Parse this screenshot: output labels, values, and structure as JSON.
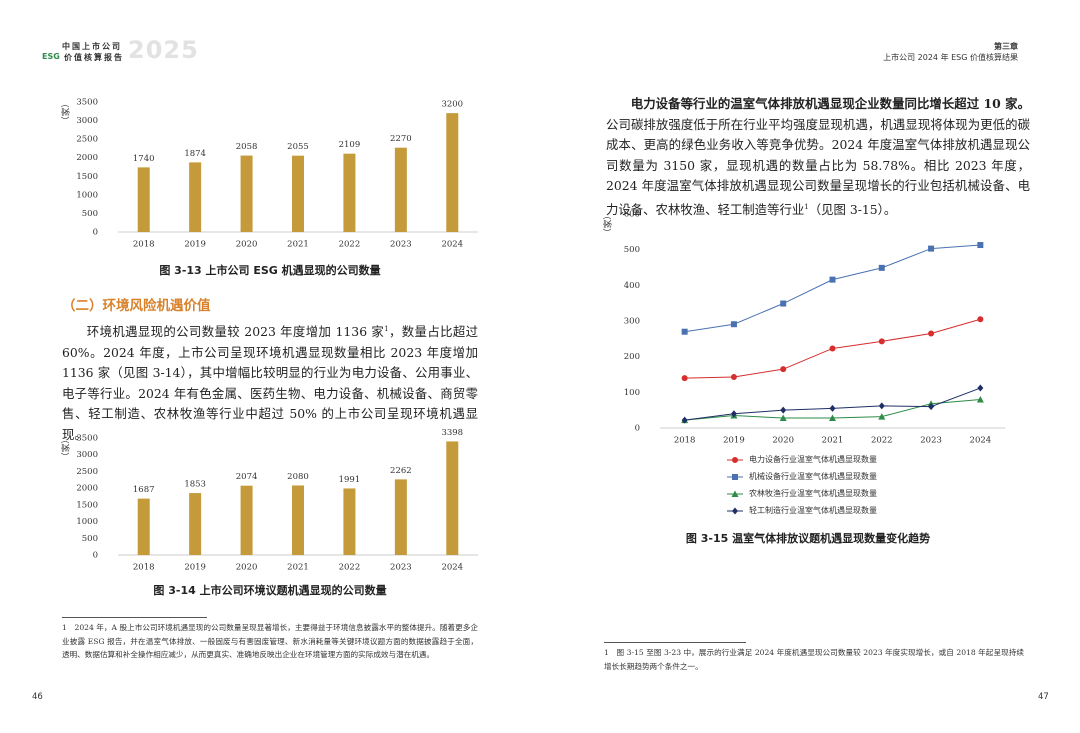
{
  "header": {
    "left_title": "中国上市公司",
    "left_esg": "ESG",
    "left_subtitle": "价值核算报告",
    "left_year": "2025",
    "right_chapter": "第三章",
    "right_subtitle": "上市公司 2024 年 ESG 价值核算结果"
  },
  "left": {
    "section_heading": "（二）环境风险机遇价值",
    "paragraph": {
      "before": "环境机遇显现的公司数量较 2023 年度增加 1136 家",
      "sup": "1",
      "after": "，数量占比超过 60%。2024 年度，上市公司呈现环境机遇显现数量相比 2023 年度增加 1136 家（见图 3-14），其中增幅比较明显的行业为电力设备、公用事业、电子等行业。2024 年有色金属、医药生物、电力设备、机械设备、商贸零售、轻工制造、农林牧渔等行业中超过 50% 的上市公司呈现环境机遇显现。"
    },
    "footnote": "1　2024 年，A 股上市公司环境机遇显现的公司数量呈现显著增长，主要得益于环境信息披露水平的整体提升。随着更多企业披露 ESG 报告，并在温室气体排放、一般固废与有害固废管理、新水消耗量等关键环境议题方面的数据披露趋于全面，透明、数据估算和补全操作相应减少，从而更真实、准确地反映出企业在环境管理方面的实际成效与潜在机遇。",
    "page_number": "46"
  },
  "right": {
    "paragraph": {
      "bold": "电力设备等行业的温室气体排放机遇显现企业数量同比增长超过 10 家。",
      "before": "公司碳排放强度低于所在行业平均强度显现机遇，机遇显现将体现为更低的碳成本、更高的绿色业务收入等竞争优势。2024 年度温室气体排放机遇显现公司数量为 3150 家，显现机遇的数量占比为 58.78%。相比 2023 年度，2024 年度温室气体排放机遇显现公司数量呈现增长的行业包括机械设备、电力设备、农林牧渔、轻工制造等行业",
      "sup": "1",
      "after": "（见图 3-15）。"
    },
    "footnote": "1　图 3-15 至图 3-23 中，展示的行业满足 2024 年度机遇显现公司数量较 2023 年度实现增长，或自 2018 年起呈现持续增长长期趋势两个条件之一。",
    "page_number": "47"
  },
  "chart_data": [
    {
      "type": "bar",
      "title": "图 3-13 上市公司 ESG 机遇显现的公司数量",
      "y_label": "（家）",
      "categories": [
        "2018",
        "2019",
        "2020",
        "2021",
        "2022",
        "2023",
        "2024"
      ],
      "values": [
        1740,
        1874,
        2058,
        2055,
        2109,
        2270,
        3200
      ],
      "color": "#c59a3b",
      "ylim": [
        0,
        3500
      ],
      "yticks": [
        0,
        500,
        1000,
        1500,
        2000,
        2500,
        3000,
        3500
      ],
      "grid": false
    },
    {
      "type": "bar",
      "title": "图 3-14 上市公司环境议题机遇显现的公司数量",
      "y_label": "（家）",
      "categories": [
        "2018",
        "2019",
        "2020",
        "2021",
        "2022",
        "2023",
        "2024"
      ],
      "values": [
        1687,
        1853,
        2074,
        2080,
        1991,
        2262,
        3398
      ],
      "color": "#c59a3b",
      "ylim": [
        0,
        3500
      ],
      "yticks": [
        0,
        500,
        1000,
        1500,
        2000,
        2500,
        3000,
        3500
      ],
      "grid": false
    },
    {
      "type": "line",
      "title": "图 3-15 温室气体排放议题机遇显现数量变化趋势",
      "y_label": "（家）",
      "categories": [
        "2018",
        "2019",
        "2020",
        "2021",
        "2022",
        "2023",
        "2024"
      ],
      "series": [
        {
          "name": "电力设备行业温室气体机遇显现数量",
          "color": "#d62d2d",
          "marker": "circle",
          "values": [
            140,
            143,
            165,
            223,
            243,
            265,
            305
          ]
        },
        {
          "name": "机械设备行业温室气体机遇显现数量",
          "color": "#4a72b0",
          "marker": "square",
          "values": [
            270,
            291,
            349,
            416,
            449,
            503,
            513
          ]
        },
        {
          "name": "农林牧渔行业温室气体机遇显现数量",
          "color": "#2e8b48",
          "marker": "triangle",
          "values": [
            22,
            35,
            28,
            28,
            32,
            68,
            80
          ]
        },
        {
          "name": "轻工制造行业温室气体机遇显现数量",
          "color": "#1f2f66",
          "marker": "diamond",
          "values": [
            22,
            40,
            50,
            55,
            62,
            60,
            112
          ]
        }
      ],
      "ylim": [
        0,
        600
      ],
      "yticks": [
        0,
        100,
        200,
        300,
        400,
        500,
        600
      ],
      "grid": false
    }
  ]
}
